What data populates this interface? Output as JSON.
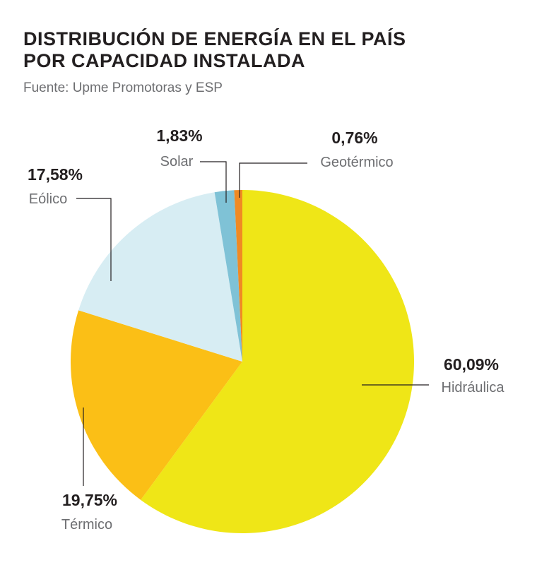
{
  "title_lines": [
    "DISTRIBUCIÓN DE ENERGÍA EN EL PAÍS",
    "POR CAPACIDAD INSTALADA"
  ],
  "subtitle": "Fuente: Upme Promotoras y ESP",
  "chart_data": {
    "type": "pie",
    "title": "DISTRIBUCIÓN DE ENERGÍA EN EL PAÍS POR CAPACIDAD INSTALADA",
    "start": "top, clockwise",
    "slices": [
      {
        "name": "Hidráulica",
        "value": 60.09,
        "label": "60,09%",
        "color": "#efe617"
      },
      {
        "name": "Térmico",
        "value": 19.75,
        "label": "19,75%",
        "color": "#fbbf16"
      },
      {
        "name": "Eólico",
        "value": 17.58,
        "label": "17,58%",
        "color": "#d7edf3"
      },
      {
        "name": "Solar",
        "value": 1.83,
        "label": "1,83%",
        "color": "#7fc2d6"
      },
      {
        "name": "Geotérmico",
        "value": 0.76,
        "label": "0,76%",
        "color": "#f08a24"
      }
    ]
  }
}
